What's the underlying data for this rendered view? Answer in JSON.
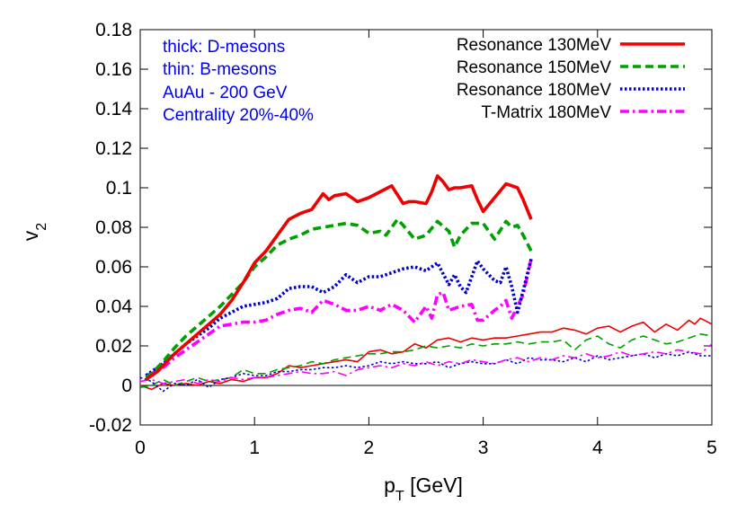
{
  "chart_data": {
    "type": "line",
    "xlabel": "p",
    "xlabel_sub": "T",
    "xlabel_unit": " [GeV]",
    "ylabel": "v",
    "ylabel_sub": "2",
    "xlim": [
      0,
      5
    ],
    "ylim": [
      -0.02,
      0.18
    ],
    "x_ticks": [
      0,
      1,
      2,
      3,
      4,
      5
    ],
    "x_tick_labels": [
      "0",
      "1",
      "2",
      "3",
      "4",
      "5"
    ],
    "y_ticks": [
      -0.02,
      0,
      0.02,
      0.04,
      0.06,
      0.08,
      0.1,
      0.12,
      0.14,
      0.16,
      0.18
    ],
    "y_tick_labels": [
      "-0.02",
      "0",
      "0.02",
      "0.04",
      "0.06",
      "0.08",
      "0.1",
      "0.12",
      "0.14",
      "0.16",
      "0.18"
    ],
    "grid": false,
    "zero_line": true,
    "legend_position": "top-right",
    "annotations": [
      "thick: D-mesons",
      "thin: B-mesons",
      "AuAu - 200 GeV",
      "Centrality 20%-40%"
    ],
    "series": [
      {
        "name": "Resonance 130MeV",
        "color": "#ee0000",
        "style": "solid",
        "thickness": "thick",
        "x": [
          0.05,
          0.1,
          0.15,
          0.2,
          0.3,
          0.4,
          0.5,
          0.6,
          0.7,
          0.8,
          0.9,
          1.0,
          1.1,
          1.2,
          1.3,
          1.4,
          1.5,
          1.6,
          1.65,
          1.7,
          1.8,
          1.9,
          2.0,
          2.1,
          2.2,
          2.3,
          2.35,
          2.4,
          2.5,
          2.55,
          2.6,
          2.65,
          2.7,
          2.75,
          2.8,
          2.9,
          2.95,
          3.0,
          3.1,
          3.2,
          3.3,
          3.35,
          3.42
        ],
        "y": [
          0.003,
          0.005,
          0.007,
          0.01,
          0.016,
          0.021,
          0.026,
          0.031,
          0.036,
          0.043,
          0.052,
          0.062,
          0.068,
          0.076,
          0.084,
          0.087,
          0.089,
          0.097,
          0.094,
          0.096,
          0.097,
          0.093,
          0.095,
          0.098,
          0.101,
          0.092,
          0.093,
          0.093,
          0.092,
          0.098,
          0.106,
          0.103,
          0.099,
          0.1,
          0.1,
          0.101,
          0.094,
          0.088,
          0.095,
          0.102,
          0.1,
          0.094,
          0.084
        ]
      },
      {
        "name": "Resonance 150MeV",
        "color": "#00a000",
        "style": "dashed",
        "thickness": "thick",
        "x": [
          0.05,
          0.1,
          0.2,
          0.3,
          0.4,
          0.5,
          0.6,
          0.7,
          0.8,
          0.9,
          1.0,
          1.1,
          1.2,
          1.3,
          1.4,
          1.5,
          1.6,
          1.7,
          1.8,
          1.9,
          2.0,
          2.1,
          2.15,
          2.2,
          2.25,
          2.3,
          2.4,
          2.5,
          2.6,
          2.7,
          2.75,
          2.8,
          2.9,
          3.0,
          3.1,
          3.2,
          3.25,
          3.3,
          3.35,
          3.42
        ],
        "y": [
          0.004,
          0.006,
          0.012,
          0.019,
          0.025,
          0.03,
          0.035,
          0.04,
          0.046,
          0.052,
          0.06,
          0.065,
          0.071,
          0.074,
          0.076,
          0.079,
          0.08,
          0.081,
          0.082,
          0.081,
          0.077,
          0.078,
          0.076,
          0.08,
          0.084,
          0.081,
          0.074,
          0.076,
          0.083,
          0.078,
          0.07,
          0.076,
          0.082,
          0.082,
          0.074,
          0.083,
          0.08,
          0.081,
          0.076,
          0.068
        ]
      },
      {
        "name": "Resonance 180MeV",
        "color": "#0000cc",
        "style": "dotted",
        "thickness": "thick",
        "x": [
          0.05,
          0.1,
          0.2,
          0.3,
          0.4,
          0.5,
          0.6,
          0.7,
          0.8,
          0.9,
          1.0,
          1.1,
          1.2,
          1.3,
          1.4,
          1.5,
          1.6,
          1.7,
          1.8,
          1.9,
          2.0,
          2.1,
          2.2,
          2.3,
          2.4,
          2.5,
          2.6,
          2.7,
          2.75,
          2.8,
          2.85,
          2.9,
          2.95,
          3.0,
          3.1,
          3.15,
          3.2,
          3.25,
          3.3,
          3.35,
          3.42
        ],
        "y": [
          0.005,
          0.007,
          0.011,
          0.016,
          0.021,
          0.025,
          0.029,
          0.034,
          0.037,
          0.04,
          0.041,
          0.042,
          0.044,
          0.049,
          0.05,
          0.05,
          0.047,
          0.05,
          0.056,
          0.052,
          0.055,
          0.055,
          0.057,
          0.059,
          0.06,
          0.058,
          0.062,
          0.051,
          0.056,
          0.05,
          0.047,
          0.055,
          0.063,
          0.059,
          0.053,
          0.052,
          0.06,
          0.05,
          0.037,
          0.048,
          0.064
        ]
      },
      {
        "name": "T-Matrix 180MeV",
        "color": "#ff00ff",
        "style": "dash-dot",
        "thickness": "thick",
        "x": [
          0.05,
          0.1,
          0.2,
          0.3,
          0.4,
          0.5,
          0.6,
          0.7,
          0.8,
          0.9,
          1.0,
          1.1,
          1.2,
          1.3,
          1.4,
          1.5,
          1.6,
          1.7,
          1.8,
          1.9,
          2.0,
          2.1,
          2.2,
          2.3,
          2.4,
          2.5,
          2.55,
          2.6,
          2.65,
          2.7,
          2.8,
          2.9,
          2.95,
          3.0,
          3.1,
          3.15,
          3.2,
          3.25,
          3.3,
          3.35,
          3.42
        ],
        "y": [
          0.005,
          0.006,
          0.009,
          0.014,
          0.018,
          0.022,
          0.026,
          0.03,
          0.031,
          0.032,
          0.032,
          0.033,
          0.036,
          0.038,
          0.039,
          0.037,
          0.043,
          0.041,
          0.038,
          0.038,
          0.04,
          0.038,
          0.041,
          0.038,
          0.032,
          0.04,
          0.034,
          0.046,
          0.047,
          0.038,
          0.04,
          0.041,
          0.033,
          0.033,
          0.038,
          0.04,
          0.043,
          0.034,
          0.04,
          0.046,
          0.064
        ]
      },
      {
        "name": "Resonance 130MeV",
        "color": "#ee0000",
        "style": "solid",
        "thickness": "thin",
        "x": [
          0.0,
          0.1,
          0.2,
          0.3,
          0.4,
          0.5,
          0.6,
          0.7,
          0.8,
          0.9,
          1.0,
          1.1,
          1.2,
          1.3,
          1.4,
          1.5,
          1.6,
          1.7,
          1.8,
          1.9,
          2.0,
          2.1,
          2.2,
          2.3,
          2.4,
          2.5,
          2.6,
          2.7,
          2.8,
          2.9,
          3.0,
          3.1,
          3.2,
          3.3,
          3.4,
          3.5,
          3.6,
          3.7,
          3.8,
          3.9,
          4.0,
          4.1,
          4.2,
          4.3,
          4.4,
          4.5,
          4.6,
          4.7,
          4.8,
          4.85,
          4.9,
          5.0
        ],
        "y": [
          0.0,
          -0.002,
          0.001,
          0.0,
          0.001,
          0.0,
          0.002,
          0.001,
          0.003,
          0.002,
          0.004,
          0.004,
          0.006,
          0.01,
          0.009,
          0.01,
          0.011,
          0.012,
          0.013,
          0.012,
          0.017,
          0.018,
          0.016,
          0.017,
          0.021,
          0.019,
          0.023,
          0.024,
          0.022,
          0.024,
          0.023,
          0.024,
          0.024,
          0.025,
          0.026,
          0.027,
          0.027,
          0.029,
          0.028,
          0.026,
          0.029,
          0.03,
          0.027,
          0.03,
          0.032,
          0.027,
          0.031,
          0.028,
          0.033,
          0.031,
          0.034,
          0.031
        ]
      },
      {
        "name": "Resonance 150MeV",
        "color": "#00a000",
        "style": "dashed",
        "thickness": "thin",
        "x": [
          0.0,
          0.1,
          0.2,
          0.3,
          0.4,
          0.5,
          0.6,
          0.7,
          0.8,
          0.9,
          1.0,
          1.1,
          1.2,
          1.3,
          1.4,
          1.5,
          1.6,
          1.7,
          1.8,
          1.9,
          2.0,
          2.1,
          2.2,
          2.3,
          2.4,
          2.5,
          2.6,
          2.7,
          2.8,
          2.9,
          3.0,
          3.1,
          3.2,
          3.3,
          3.4,
          3.5,
          3.6,
          3.7,
          3.8,
          3.9,
          4.0,
          4.1,
          4.2,
          4.3,
          4.4,
          4.5,
          4.6,
          4.7,
          4.8,
          4.9,
          5.0
        ],
        "y": [
          -0.001,
          0.0,
          0.003,
          0.0,
          0.002,
          0.004,
          0.002,
          0.003,
          0.004,
          0.008,
          0.006,
          0.006,
          0.008,
          0.009,
          0.01,
          0.012,
          0.011,
          0.013,
          0.014,
          0.015,
          0.016,
          0.016,
          0.017,
          0.017,
          0.018,
          0.02,
          0.019,
          0.02,
          0.019,
          0.021,
          0.02,
          0.021,
          0.021,
          0.022,
          0.021,
          0.022,
          0.022,
          0.023,
          0.018,
          0.023,
          0.025,
          0.021,
          0.019,
          0.023,
          0.025,
          0.023,
          0.021,
          0.022,
          0.024,
          0.026,
          0.025
        ]
      },
      {
        "name": "Resonance 180MeV",
        "color": "#0000cc",
        "style": "dotted",
        "thickness": "thin",
        "x": [
          0.0,
          0.1,
          0.2,
          0.3,
          0.4,
          0.5,
          0.6,
          0.7,
          0.8,
          0.9,
          1.0,
          1.1,
          1.2,
          1.3,
          1.4,
          1.5,
          1.6,
          1.7,
          1.8,
          1.9,
          2.0,
          2.1,
          2.2,
          2.3,
          2.4,
          2.5,
          2.6,
          2.7,
          2.8,
          2.9,
          3.0,
          3.1,
          3.2,
          3.3,
          3.4,
          3.5,
          3.6,
          3.7,
          3.8,
          3.9,
          4.0,
          4.1,
          4.2,
          4.3,
          4.4,
          4.5,
          4.6,
          4.7,
          4.8,
          4.9,
          5.0
        ],
        "y": [
          0.004,
          0.002,
          -0.003,
          0.001,
          0.0,
          0.003,
          -0.001,
          0.003,
          0.004,
          0.006,
          0.005,
          0.005,
          0.007,
          0.007,
          0.008,
          0.008,
          0.009,
          0.009,
          0.01,
          0.009,
          0.01,
          0.012,
          0.011,
          0.012,
          0.011,
          0.011,
          0.012,
          0.009,
          0.011,
          0.012,
          0.011,
          0.011,
          0.013,
          0.011,
          0.014,
          0.013,
          0.013,
          0.012,
          0.014,
          0.012,
          0.015,
          0.013,
          0.014,
          0.015,
          0.016,
          0.014,
          0.016,
          0.015,
          0.017,
          0.015,
          0.015
        ]
      },
      {
        "name": "T-Matrix 180MeV",
        "color": "#ff00ff",
        "style": "dash-dot",
        "thickness": "thin",
        "x": [
          0.0,
          0.1,
          0.2,
          0.3,
          0.4,
          0.5,
          0.6,
          0.7,
          0.8,
          0.9,
          1.0,
          1.1,
          1.2,
          1.3,
          1.4,
          1.5,
          1.6,
          1.7,
          1.8,
          1.9,
          2.0,
          2.1,
          2.2,
          2.3,
          2.4,
          2.5,
          2.6,
          2.7,
          2.8,
          2.9,
          3.0,
          3.1,
          3.2,
          3.3,
          3.4,
          3.5,
          3.6,
          3.7,
          3.8,
          3.9,
          4.0,
          4.1,
          4.2,
          4.3,
          4.4,
          4.5,
          4.6,
          4.7,
          4.8,
          4.9,
          5.0
        ],
        "y": [
          0.002,
          0.003,
          0.001,
          0.002,
          0.003,
          0.001,
          0.003,
          0.002,
          0.004,
          0.003,
          0.004,
          0.004,
          0.005,
          0.006,
          0.007,
          0.006,
          0.006,
          0.007,
          0.005,
          0.008,
          0.009,
          0.01,
          0.009,
          0.011,
          0.01,
          0.012,
          0.01,
          0.012,
          0.011,
          0.013,
          0.012,
          0.011,
          0.013,
          0.014,
          0.012,
          0.014,
          0.013,
          0.015,
          0.014,
          0.016,
          0.014,
          0.015,
          0.017,
          0.015,
          0.016,
          0.017,
          0.016,
          0.018,
          0.017,
          0.016,
          0.021
        ]
      }
    ]
  }
}
